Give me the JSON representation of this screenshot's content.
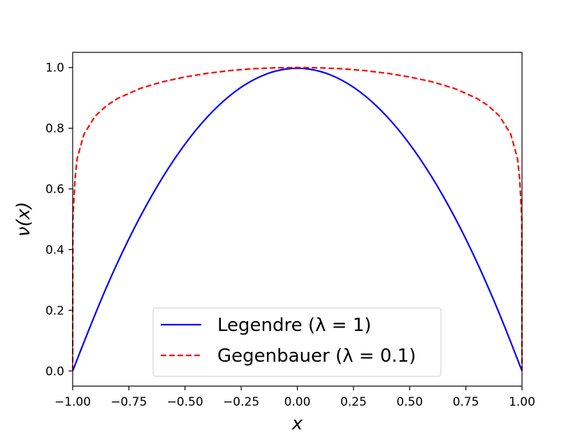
{
  "chart_data": {
    "type": "line",
    "title": "",
    "xlabel": "x",
    "ylabel": "ν(x)",
    "xlim": [
      -1.0,
      1.0
    ],
    "ylim": [
      -0.05,
      1.05
    ],
    "xticks": [
      -1.0,
      -0.75,
      -0.5,
      -0.25,
      0.0,
      0.25,
      0.5,
      0.75,
      1.0
    ],
    "xtick_labels": [
      "−1.00",
      "−0.75",
      "−0.50",
      "−0.25",
      "0.00",
      "0.25",
      "0.50",
      "0.75",
      "1.00"
    ],
    "yticks": [
      0.0,
      0.2,
      0.4,
      0.6,
      0.8,
      1.0
    ],
    "ytick_labels": [
      "0.0",
      "0.2",
      "0.4",
      "0.6",
      "0.8",
      "1.0"
    ],
    "grid": false,
    "legend_position": "lower-center",
    "series": [
      {
        "name": "Legendre (λ = 1)",
        "color": "#0000ff",
        "style": "solid",
        "x": [
          -1.0,
          -0.9,
          -0.8,
          -0.7,
          -0.6,
          -0.5,
          -0.4,
          -0.3,
          -0.2,
          -0.1,
          0.0,
          0.1,
          0.2,
          0.3,
          0.4,
          0.5,
          0.6,
          0.7,
          0.8,
          0.9,
          1.0
        ],
        "y": [
          0.0,
          0.19,
          0.36,
          0.51,
          0.64,
          0.75,
          0.84,
          0.91,
          0.96,
          0.99,
          1.0,
          0.99,
          0.96,
          0.91,
          0.84,
          0.75,
          0.64,
          0.51,
          0.36,
          0.19,
          0.0
        ]
      },
      {
        "name": "Gegenbauer (λ = 0.1)",
        "color": "#ff0000",
        "style": "dashed",
        "x": [
          -1.0,
          -0.999,
          -0.99,
          -0.98,
          -0.95,
          -0.9,
          -0.85,
          -0.8,
          -0.7,
          -0.6,
          -0.5,
          -0.4,
          -0.3,
          -0.2,
          -0.1,
          0.0,
          0.1,
          0.2,
          0.3,
          0.4,
          0.5,
          0.6,
          0.7,
          0.8,
          0.85,
          0.9,
          0.95,
          0.98,
          0.99,
          0.999,
          1.0
        ],
        "y": [
          0.0,
          0.5,
          0.63,
          0.7,
          0.78,
          0.84,
          0.874,
          0.898,
          0.931,
          0.953,
          0.969,
          0.981,
          0.99,
          0.996,
          0.999,
          1.0,
          0.999,
          0.996,
          0.99,
          0.981,
          0.969,
          0.953,
          0.931,
          0.898,
          0.874,
          0.84,
          0.78,
          0.7,
          0.63,
          0.5,
          0.0
        ]
      }
    ]
  }
}
